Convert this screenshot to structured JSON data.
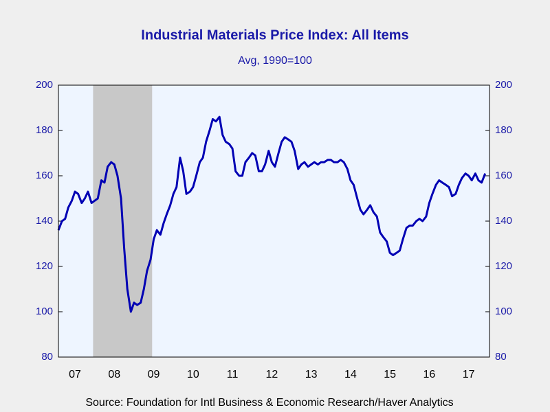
{
  "chart_data": {
    "type": "line",
    "title": "Industrial Materials Price Index: All Items",
    "subtitle": "Avg, 1990=100",
    "source": "Source:  Foundation for Intl Business & Economic Research/Haver Analytics",
    "xlim": [
      2007.08,
      2018.03
    ],
    "ylim": [
      80,
      200
    ],
    "yticks": [
      80,
      100,
      120,
      140,
      160,
      180,
      200
    ],
    "xticks": [
      {
        "value": 2007.5,
        "label": "07"
      },
      {
        "value": 2008.5,
        "label": "08"
      },
      {
        "value": 2009.5,
        "label": "09"
      },
      {
        "value": 2010.5,
        "label": "10"
      },
      {
        "value": 2011.5,
        "label": "11"
      },
      {
        "value": 2012.5,
        "label": "12"
      },
      {
        "value": 2013.5,
        "label": "13"
      },
      {
        "value": 2014.5,
        "label": "14"
      },
      {
        "value": 2015.5,
        "label": "15"
      },
      {
        "value": 2016.5,
        "label": "16"
      },
      {
        "value": 2017.5,
        "label": "17"
      }
    ],
    "shading": [
      2007.96,
      2009.46
    ],
    "shading_color": "#c8c8c8",
    "plot_background": "#eef5ff",
    "x": [
      2007.08,
      2007.17,
      2007.25,
      2007.33,
      2007.42,
      2007.5,
      2007.58,
      2007.67,
      2007.75,
      2007.83,
      2007.92,
      2008.0,
      2008.08,
      2008.17,
      2008.25,
      2008.33,
      2008.42,
      2008.5,
      2008.58,
      2008.67,
      2008.75,
      2008.83,
      2008.92,
      2009.0,
      2009.08,
      2009.17,
      2009.25,
      2009.33,
      2009.42,
      2009.5,
      2009.58,
      2009.67,
      2009.75,
      2009.83,
      2009.92,
      2010.0,
      2010.08,
      2010.17,
      2010.25,
      2010.33,
      2010.42,
      2010.5,
      2010.58,
      2010.67,
      2010.75,
      2010.83,
      2010.92,
      2011.0,
      2011.08,
      2011.17,
      2011.25,
      2011.33,
      2011.42,
      2011.5,
      2011.58,
      2011.67,
      2011.75,
      2011.83,
      2011.92,
      2012.0,
      2012.08,
      2012.17,
      2012.25,
      2012.33,
      2012.42,
      2012.5,
      2012.58,
      2012.67,
      2012.75,
      2012.83,
      2012.92,
      2013.0,
      2013.08,
      2013.17,
      2013.25,
      2013.33,
      2013.42,
      2013.5,
      2013.58,
      2013.67,
      2013.75,
      2013.83,
      2013.92,
      2014.0,
      2014.08,
      2014.17,
      2014.25,
      2014.33,
      2014.42,
      2014.5,
      2014.58,
      2014.67,
      2014.75,
      2014.83,
      2014.92,
      2015.0,
      2015.08,
      2015.17,
      2015.25,
      2015.33,
      2015.42,
      2015.5,
      2015.58,
      2015.67,
      2015.75,
      2015.83,
      2015.92,
      2016.0,
      2016.08,
      2016.17,
      2016.25,
      2016.33,
      2016.42,
      2016.5,
      2016.58,
      2016.67,
      2016.75,
      2016.83,
      2016.92,
      2017.0,
      2017.08,
      2017.17,
      2017.25,
      2017.33,
      2017.42,
      2017.5,
      2017.58,
      2017.67,
      2017.75,
      2017.83,
      2017.92
    ],
    "series": [
      {
        "color": "#0000b4",
        "values": [
          136,
          140,
          141,
          146,
          149,
          153,
          152,
          148,
          150,
          153,
          148,
          149,
          150,
          158,
          157,
          164,
          166,
          165,
          160,
          150,
          128,
          110,
          100,
          104,
          103,
          104,
          110,
          118,
          123,
          132,
          136,
          134,
          139,
          143,
          147,
          152,
          155,
          168,
          162,
          152,
          153,
          155,
          160,
          166,
          168,
          175,
          180,
          185,
          184,
          186,
          178,
          175,
          174,
          172,
          162,
          160,
          160,
          166,
          168,
          170,
          169,
          162,
          162,
          165,
          171,
          166,
          164,
          170,
          175,
          177,
          176,
          175,
          171,
          163,
          165,
          166,
          164,
          165,
          166,
          165,
          166,
          166,
          167,
          167,
          166,
          166,
          167,
          166,
          163,
          158,
          156,
          150,
          145,
          143,
          145,
          147,
          144,
          142,
          135,
          133,
          131,
          126,
          125,
          126,
          127,
          132,
          137,
          138,
          138,
          140,
          141,
          140,
          142,
          148,
          152,
          156,
          158,
          157,
          156,
          155,
          151,
          152,
          156,
          159,
          161,
          160,
          158,
          161,
          158,
          157,
          161
        ]
      }
    ]
  }
}
